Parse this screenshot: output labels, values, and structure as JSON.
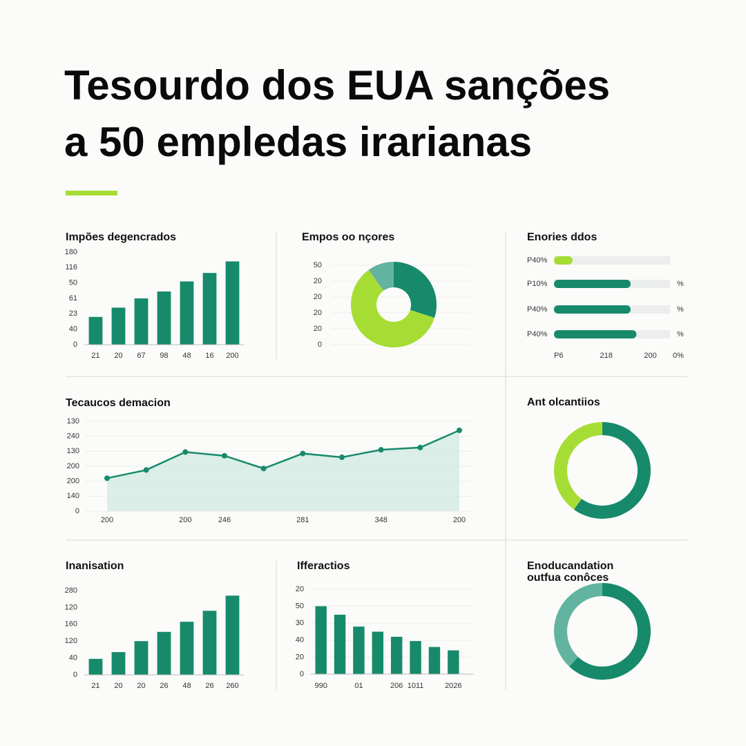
{
  "title": [
    "Tesourdo dos EUA sanções",
    "a 50 empledas irarianas"
  ],
  "chart_data": [
    {
      "type": "bar",
      "title": "Impões degencrados",
      "categories": [
        "21",
        "20",
        "67",
        "98",
        "48",
        "16",
        "200"
      ],
      "values": [
        1.8,
        2.4,
        3.0,
        3.45,
        4.1,
        4.65,
        5.4
      ],
      "color": "#178a6c",
      "ylim": [
        0,
        6
      ],
      "yticks": [
        0,
        {
          "value": 1,
          "label": "40"
        },
        {
          "value": 2,
          "label": "23"
        },
        {
          "value": 3,
          "label": "61"
        },
        {
          "value": 4,
          "label": "50"
        },
        {
          "value": 5,
          "label": "116"
        },
        {
          "value": 6,
          "label": "180"
        }
      ],
      "grid": false
    },
    {
      "type": "donut",
      "title": "Empos oo nçores",
      "values": [
        30,
        60,
        10
      ],
      "colors": [
        "#178a6c",
        "#a6dd35",
        "#62b4a0"
      ],
      "ylim": [
        0,
        5
      ],
      "yticks": [
        0,
        {
          "value": 1,
          "label": "20"
        },
        {
          "value": 2,
          "label": "20"
        },
        {
          "value": 3,
          "label": "20"
        },
        {
          "value": 4,
          "label": "20"
        },
        {
          "value": 5,
          "label": "50"
        }
      ],
      "grid": true
    },
    {
      "type": "hbar",
      "title": "Enories ddos",
      "categories": [
        "P40%",
        "P10%",
        "P40%",
        "P40%"
      ],
      "values": [
        16,
        66,
        66,
        71
      ],
      "end_labels": [
        null,
        "%",
        "%",
        "%"
      ],
      "colors": [
        "#a6dd35",
        "#178a6c",
        "#178a6c",
        "#178a6c"
      ],
      "xlim": [
        0,
        110
      ],
      "xticks": [
        {
          "value": 0,
          "label": "P6"
        },
        {
          "value": 45,
          "label": "218"
        },
        {
          "value": 83,
          "label": "200"
        },
        {
          "value": 107,
          "label": "0%"
        }
      ]
    },
    {
      "type": "area",
      "title": "Tecaucos demacion",
      "categories": [
        "200",
        null,
        "200",
        "246",
        null,
        "281",
        null,
        "348",
        null,
        "200"
      ],
      "values": [
        2.2,
        2.75,
        3.95,
        3.7,
        2.85,
        3.85,
        3.6,
        4.1,
        4.25,
        5.4
      ],
      "color": "#178a6c",
      "fill": "#d3ebe4",
      "ylim": [
        0,
        6
      ],
      "yticks": [
        0,
        {
          "value": 1,
          "label": "140"
        },
        {
          "value": 2,
          "label": "200"
        },
        {
          "value": 3,
          "label": "200"
        },
        {
          "value": 4,
          "label": "130"
        },
        {
          "value": 5,
          "label": "240"
        },
        {
          "value": 6,
          "label": "130"
        }
      ],
      "grid": true
    },
    {
      "type": "donut",
      "title": "Ant olcantiios",
      "values": [
        60,
        40
      ],
      "colors": [
        "#178a6c",
        "#a6dd35"
      ]
    },
    {
      "type": "bar",
      "title": "Inanisation",
      "categories": [
        "21",
        "20",
        "20",
        "26",
        "48",
        "26",
        "260"
      ],
      "values": [
        0.95,
        1.35,
        2.0,
        2.55,
        3.15,
        3.8,
        4.7
      ],
      "color": "#178a6c",
      "ylim": [
        0,
        5
      ],
      "yticks": [
        0,
        {
          "value": 1,
          "label": "40"
        },
        {
          "value": 2,
          "label": "120"
        },
        {
          "value": 3,
          "label": "160"
        },
        {
          "value": 4,
          "label": "120"
        },
        {
          "value": 5,
          "label": "280"
        }
      ],
      "grid": false
    },
    {
      "type": "bar",
      "title": "Ifferactios",
      "categories": [
        "990",
        null,
        "01",
        null,
        "206",
        "1011",
        null,
        "2026"
      ],
      "values": [
        4.0,
        3.5,
        2.8,
        2.5,
        2.2,
        1.95,
        1.6,
        1.4
      ],
      "color": "#178a6c",
      "ylim": [
        0,
        5
      ],
      "yticks": [
        0,
        {
          "value": 1,
          "label": "20"
        },
        {
          "value": 2,
          "label": "40"
        },
        {
          "value": 3,
          "label": "30"
        },
        {
          "value": 4,
          "label": "50"
        },
        {
          "value": 5,
          "label": "20"
        }
      ],
      "grid": true
    },
    {
      "type": "donut",
      "title": [
        "Enoducandation",
        "outfua conôces"
      ],
      "values": [
        62,
        38
      ],
      "colors": [
        "#178a6c",
        "#62b4a0"
      ]
    }
  ]
}
